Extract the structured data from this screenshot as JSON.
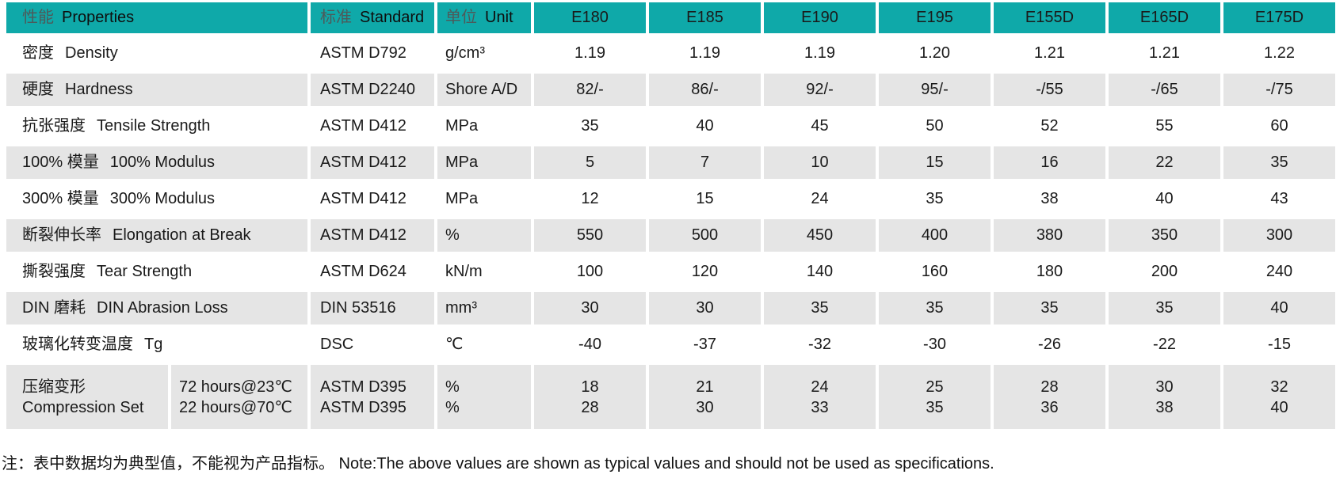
{
  "table": {
    "header": {
      "properties_cn": "性能",
      "properties_en": "Properties",
      "standard_cn": "标准",
      "standard_en": "Standard",
      "unit_cn": "单位",
      "unit_en": "Unit",
      "models": [
        "E180",
        "E185",
        "E190",
        "E195",
        "E155D",
        "E165D",
        "E175D"
      ]
    },
    "rows": [
      {
        "property_cn": "密度",
        "property_en": "Density",
        "standard": "ASTM D792",
        "unit": "g/cm³",
        "values": [
          "1.19",
          "1.19",
          "1.19",
          "1.20",
          "1.21",
          "1.21",
          "1.22"
        ]
      },
      {
        "property_cn": "硬度",
        "property_en": "Hardness",
        "standard": "ASTM D2240",
        "unit": "Shore A/D",
        "values": [
          "82/-",
          "86/-",
          "92/-",
          "95/-",
          "-/55",
          "-/65",
          "-/75"
        ]
      },
      {
        "property_cn": "抗张强度",
        "property_en": "Tensile Strength",
        "standard": "ASTM D412",
        "unit": "MPa",
        "values": [
          "35",
          "40",
          "45",
          "50",
          "52",
          "55",
          "60"
        ]
      },
      {
        "property_cn": "100% 模量",
        "property_en": "100% Modulus",
        "standard": "ASTM D412",
        "unit": "MPa",
        "values": [
          "5",
          "7",
          "10",
          "15",
          "16",
          "22",
          "35"
        ]
      },
      {
        "property_cn": "300% 模量",
        "property_en": "300% Modulus",
        "standard": "ASTM D412",
        "unit": "MPa",
        "values": [
          "12",
          "15",
          "24",
          "35",
          "38",
          "40",
          "43"
        ]
      },
      {
        "property_cn": "断裂伸长率",
        "property_en": "Elongation at Break",
        "standard": "ASTM D412",
        "unit": "%",
        "values": [
          "550",
          "500",
          "450",
          "400",
          "380",
          "350",
          "300"
        ]
      },
      {
        "property_cn": "撕裂强度",
        "property_en": "Tear Strength",
        "standard": "ASTM D624",
        "unit": "kN/m",
        "values": [
          "100",
          "120",
          "140",
          "160",
          "180",
          "200",
          "240"
        ]
      },
      {
        "property_cn": "DIN 磨耗",
        "property_en": "DIN Abrasion Loss",
        "standard": "DIN 53516",
        "unit": "mm³",
        "values": [
          "30",
          "30",
          "35",
          "35",
          "35",
          "35",
          "40"
        ]
      },
      {
        "property_cn": "玻璃化转变温度",
        "property_en": "Tg",
        "standard": "DSC",
        "unit": "℃",
        "values": [
          "-40",
          "-37",
          "-32",
          "-30",
          "-26",
          "-22",
          "-15"
        ]
      }
    ],
    "compression_row": {
      "property_cn": "压缩变形",
      "property_en": "Compression Set",
      "conditions": [
        "72 hours@23℃",
        "22 hours@70℃"
      ],
      "standards": [
        "ASTM D395",
        "ASTM D395"
      ],
      "units": [
        "%",
        "%"
      ],
      "values": [
        [
          "18",
          "28"
        ],
        [
          "21",
          "30"
        ],
        [
          "24",
          "33"
        ],
        [
          "25",
          "35"
        ],
        [
          "28",
          "36"
        ],
        [
          "30",
          "38"
        ],
        [
          "32",
          "40"
        ]
      ]
    }
  },
  "footnote": "注：表中数据均为典型值，不能视为产品指标。 Note:The above values are shown as typical values and should not be used as specifications.",
  "colors": {
    "header_bg": "#0FA9A9",
    "shaded_row_bg": "#E5E5E5",
    "text": "#1A1A1A",
    "header_cn_text": "#4D5A5A"
  }
}
